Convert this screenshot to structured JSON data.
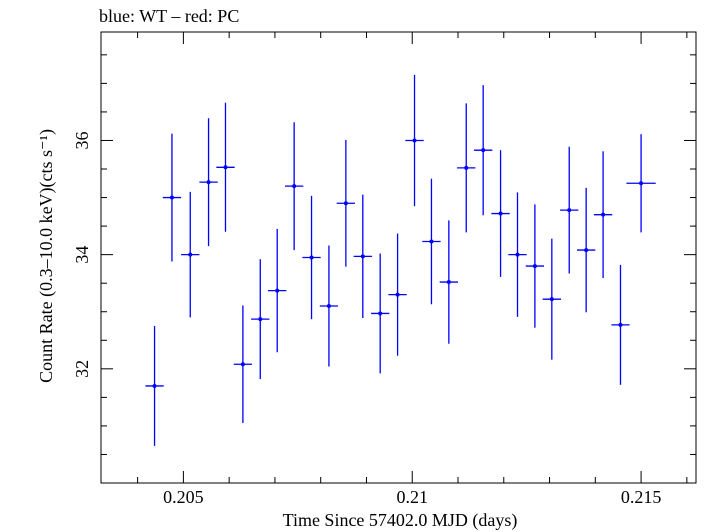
{
  "chart_data": {
    "type": "scatter",
    "title": "blue: WT – red: PC",
    "xlabel": "Time Since 57402.0 MJD (days)",
    "ylabel": "Count Rate (0.3–10.0 keV)(cts s⁻¹)",
    "xlim": [
      0.2032,
      0.2162
    ],
    "ylim": [
      30.0,
      37.9
    ],
    "xticks": [
      0.205,
      0.21,
      0.215
    ],
    "xtick_labels": [
      "0.205",
      "0.21",
      "0.215"
    ],
    "yticks": [
      32,
      34,
      36
    ],
    "ytick_labels": [
      "32",
      "34",
      "36"
    ],
    "grid": false,
    "series": [
      {
        "color": "#0000ff",
        "points": [
          {
            "x": 0.20437,
            "y": 31.7,
            "xerr": 0.0002,
            "yerr": 1.05
          },
          {
            "x": 0.20475,
            "y": 35.0,
            "xerr": 0.0002,
            "yerr": 1.12
          },
          {
            "x": 0.20515,
            "y": 34.0,
            "xerr": 0.0002,
            "yerr": 1.1
          },
          {
            "x": 0.20555,
            "y": 35.27,
            "xerr": 0.0002,
            "yerr": 1.12
          },
          {
            "x": 0.20592,
            "y": 35.53,
            "xerr": 0.0002,
            "yerr": 1.13
          },
          {
            "x": 0.2063,
            "y": 32.08,
            "xerr": 0.0002,
            "yerr": 1.03
          },
          {
            "x": 0.20668,
            "y": 32.87,
            "xerr": 0.0002,
            "yerr": 1.05
          },
          {
            "x": 0.20705,
            "y": 33.37,
            "xerr": 0.0002,
            "yerr": 1.08
          },
          {
            "x": 0.20742,
            "y": 35.2,
            "xerr": 0.0002,
            "yerr": 1.12
          },
          {
            "x": 0.2078,
            "y": 33.95,
            "xerr": 0.0002,
            "yerr": 1.08
          },
          {
            "x": 0.20818,
            "y": 33.1,
            "xerr": 0.0002,
            "yerr": 1.06
          },
          {
            "x": 0.20855,
            "y": 34.9,
            "xerr": 0.0002,
            "yerr": 1.11
          },
          {
            "x": 0.20892,
            "y": 33.97,
            "xerr": 0.0002,
            "yerr": 1.08
          },
          {
            "x": 0.2093,
            "y": 32.97,
            "xerr": 0.0002,
            "yerr": 1.05
          },
          {
            "x": 0.20968,
            "y": 33.3,
            "xerr": 0.0002,
            "yerr": 1.07
          },
          {
            "x": 0.21005,
            "y": 36.0,
            "xerr": 0.0002,
            "yerr": 1.15
          },
          {
            "x": 0.21042,
            "y": 34.23,
            "xerr": 0.0002,
            "yerr": 1.1
          },
          {
            "x": 0.2108,
            "y": 33.52,
            "xerr": 0.0002,
            "yerr": 1.08
          },
          {
            "x": 0.21118,
            "y": 35.52,
            "xerr": 0.0002,
            "yerr": 1.13
          },
          {
            "x": 0.21155,
            "y": 35.83,
            "xerr": 0.0002,
            "yerr": 1.14
          },
          {
            "x": 0.21193,
            "y": 34.72,
            "xerr": 0.0002,
            "yerr": 1.11
          },
          {
            "x": 0.2123,
            "y": 34.0,
            "xerr": 0.0002,
            "yerr": 1.09
          },
          {
            "x": 0.21268,
            "y": 33.8,
            "xerr": 0.0002,
            "yerr": 1.08
          },
          {
            "x": 0.21305,
            "y": 33.22,
            "xerr": 0.0002,
            "yerr": 1.06
          },
          {
            "x": 0.21343,
            "y": 34.78,
            "xerr": 0.0002,
            "yerr": 1.11
          },
          {
            "x": 0.2138,
            "y": 34.08,
            "xerr": 0.0002,
            "yerr": 1.09
          },
          {
            "x": 0.21417,
            "y": 34.7,
            "xerr": 0.0002,
            "yerr": 1.11
          },
          {
            "x": 0.21455,
            "y": 32.77,
            "xerr": 0.0002,
            "yerr": 1.05
          },
          {
            "x": 0.215,
            "y": 35.25,
            "xerr": 0.00032,
            "yerr": 0.86
          }
        ]
      }
    ]
  }
}
